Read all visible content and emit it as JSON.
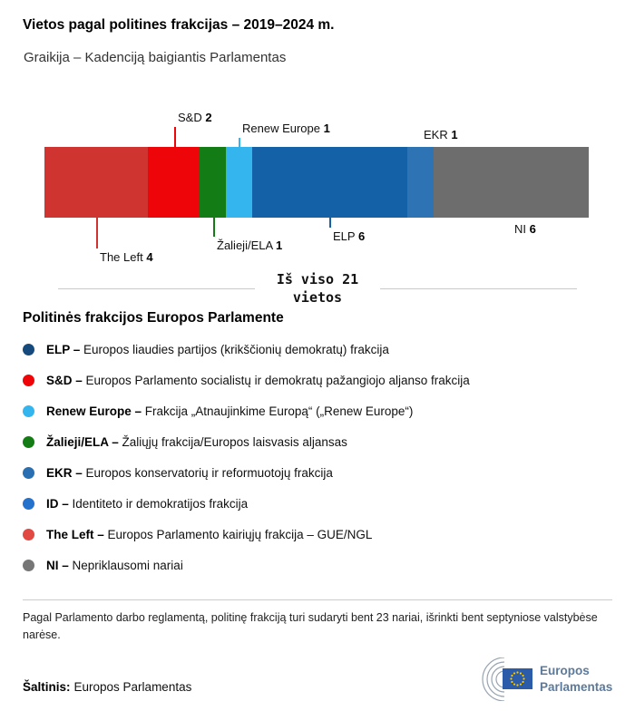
{
  "header": {
    "title": "Vietos pagal politines frakcijas – 2019–2024 m.",
    "subtitle": "Graikija – Kadenciją baigiantis Parlamentas"
  },
  "chart_data": {
    "type": "bar",
    "variant": "stacked-horizontal-seats",
    "title": "Vietos pagal politines frakcijas – 2019–2024 m.",
    "subtitle": "Graikija – Kadenciją baigiantis Parlamentas",
    "total_seats": 21,
    "total_label": "Iš viso 21 vietos",
    "segments": [
      {
        "slug": "the-left",
        "name": "The Left",
        "seats": 4,
        "color": "#cf3430",
        "label_side": "below"
      },
      {
        "slug": "sd",
        "name": "S&D",
        "seats": 2,
        "color": "#ee0509",
        "label_side": "above"
      },
      {
        "slug": "zalieji-ela",
        "name": "Žalieji/ELA",
        "seats": 1,
        "color": "#147c14",
        "label_side": "below"
      },
      {
        "slug": "renew-europe",
        "name": "Renew Europe",
        "seats": 1,
        "color": "#35b5ee",
        "label_side": "above"
      },
      {
        "slug": "elp",
        "name": "ELP",
        "seats": 6,
        "color": "#1561a8",
        "label_side": "below"
      },
      {
        "slug": "ekr",
        "name": "EKR",
        "seats": 1,
        "color": "#2e74b5",
        "label_side": "above"
      },
      {
        "slug": "ni",
        "name": "NI",
        "seats": 6,
        "color": "#6d6d6d",
        "label_side": "below"
      }
    ]
  },
  "total": {
    "line1": "Iš viso 21",
    "line2": "vietos"
  },
  "legend": {
    "heading": "Politinės frakcijos Europos Parlamente",
    "items": [
      {
        "slug": "elp",
        "abbr": "ELP –",
        "desc": "Europos liaudies partijos (krikščionių demokratų) frakcija",
        "color": "#174a7c"
      },
      {
        "slug": "sd",
        "abbr": "S&D –",
        "desc": "Europos Parlamento socialistų ir demokratų pažangiojo aljanso frakcija",
        "color": "#ee0509"
      },
      {
        "slug": "renew-europe",
        "abbr": "Renew Europe –",
        "desc": "Frakcija „Atnaujinkime Europą“ („Renew Europe“)",
        "color": "#35b5ee"
      },
      {
        "slug": "zalieji-ela",
        "abbr": "Žalieji/ELA –",
        "desc": "Žaliųjų frakcija/Europos laisvasis aljansas",
        "color": "#147c14"
      },
      {
        "slug": "ekr",
        "abbr": "EKR –",
        "desc": "Europos konservatorių ir reformuotojų frakcija",
        "color": "#2a6fb2"
      },
      {
        "slug": "id",
        "abbr": "ID –",
        "desc": "Identiteto ir demokratijos frakcija",
        "color": "#2472cc"
      },
      {
        "slug": "the-left",
        "abbr": "The Left –",
        "desc": "Europos Parlamento kairiųjų frakcija – GUE/NGL",
        "color": "#e04a42"
      },
      {
        "slug": "ni",
        "abbr": "NI –",
        "desc": "Nepriklausomi nariai",
        "color": "#767676"
      }
    ]
  },
  "footnote": "Pagal Parlamento darbo reglamentą, politinę frakciją turi sudaryti bent 23 nariai, išrinkti bent septyniose valstybėse narėse.",
  "source": {
    "label": "Šaltinis:",
    "value": "Europos Parlamentas"
  },
  "logo": {
    "line1": "Europos",
    "line2": "Parlamentas"
  }
}
